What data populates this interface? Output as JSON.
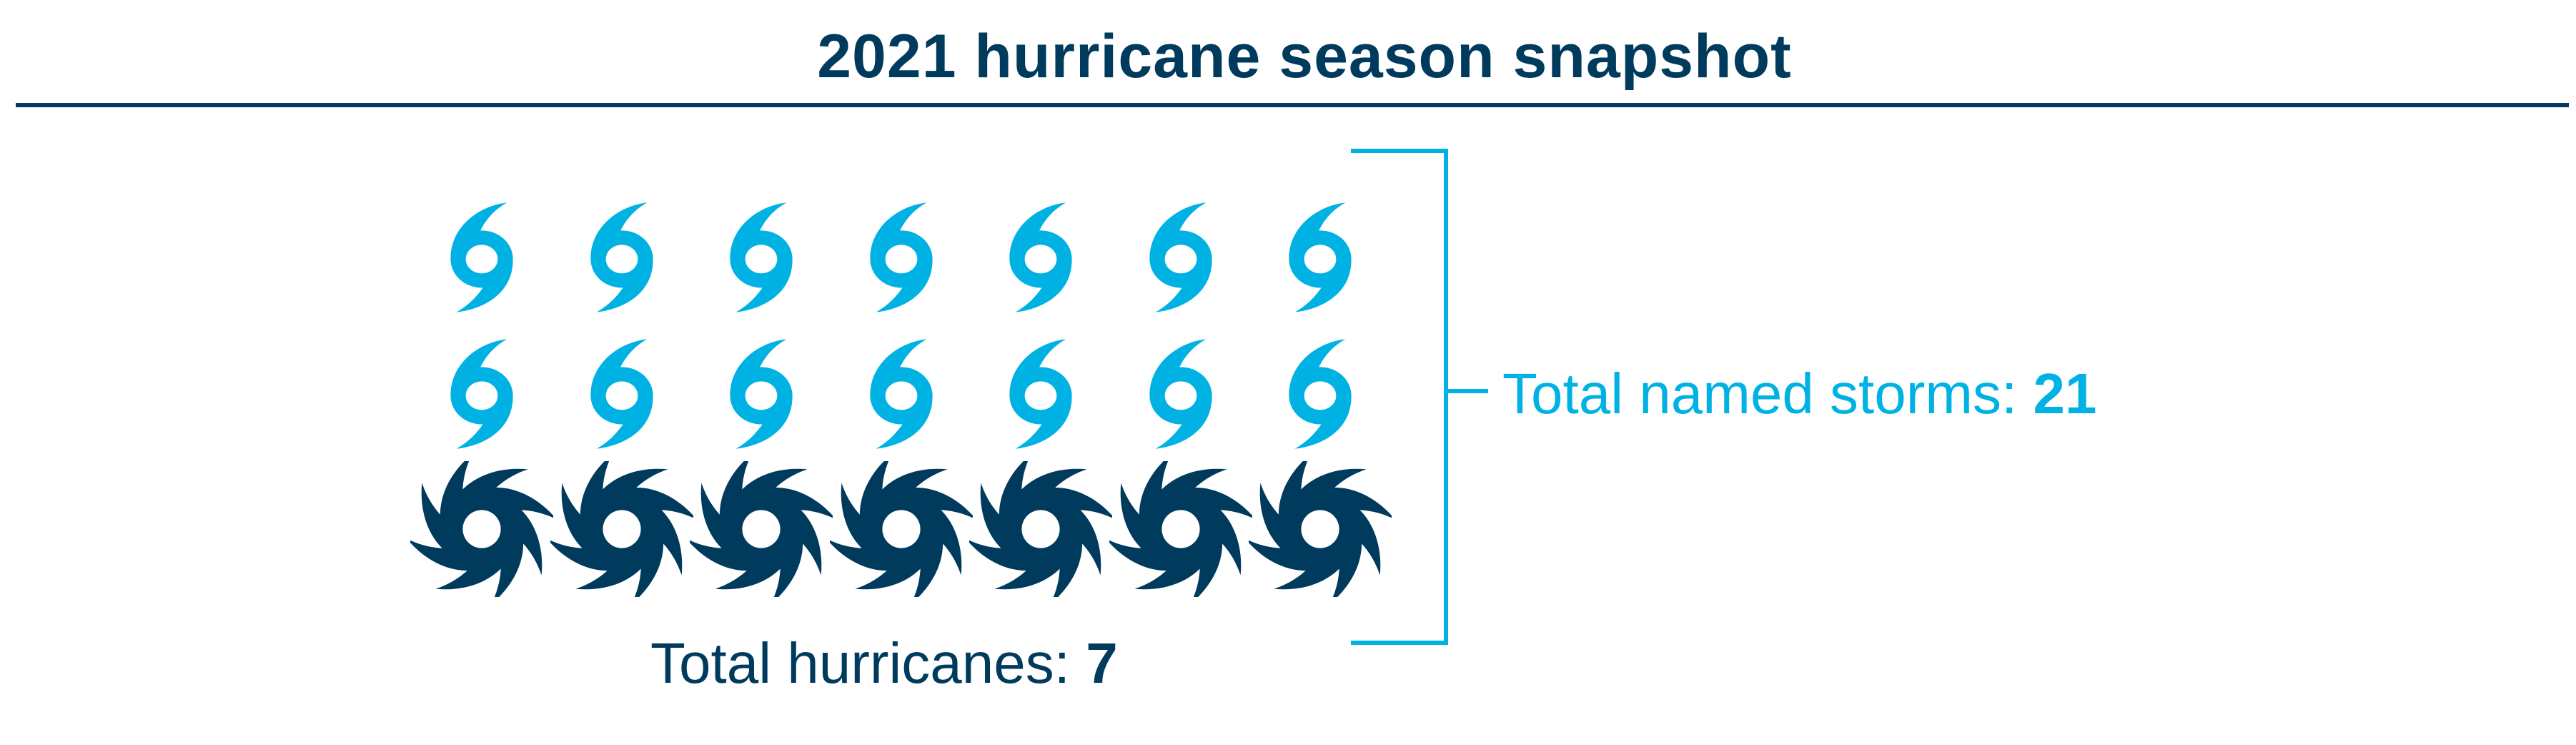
{
  "title": "2021 hurricane season snapshot",
  "colors": {
    "named_storm": "#00B2E3",
    "hurricane": "#003A5D"
  },
  "named_storms": {
    "label": "Total named storms:",
    "value": "21",
    "count": 21,
    "icon": "tropical-storm-icon"
  },
  "hurricanes": {
    "label": "Total hurricanes:",
    "value": "7",
    "count": 7,
    "icon": "hurricane-icon"
  }
}
